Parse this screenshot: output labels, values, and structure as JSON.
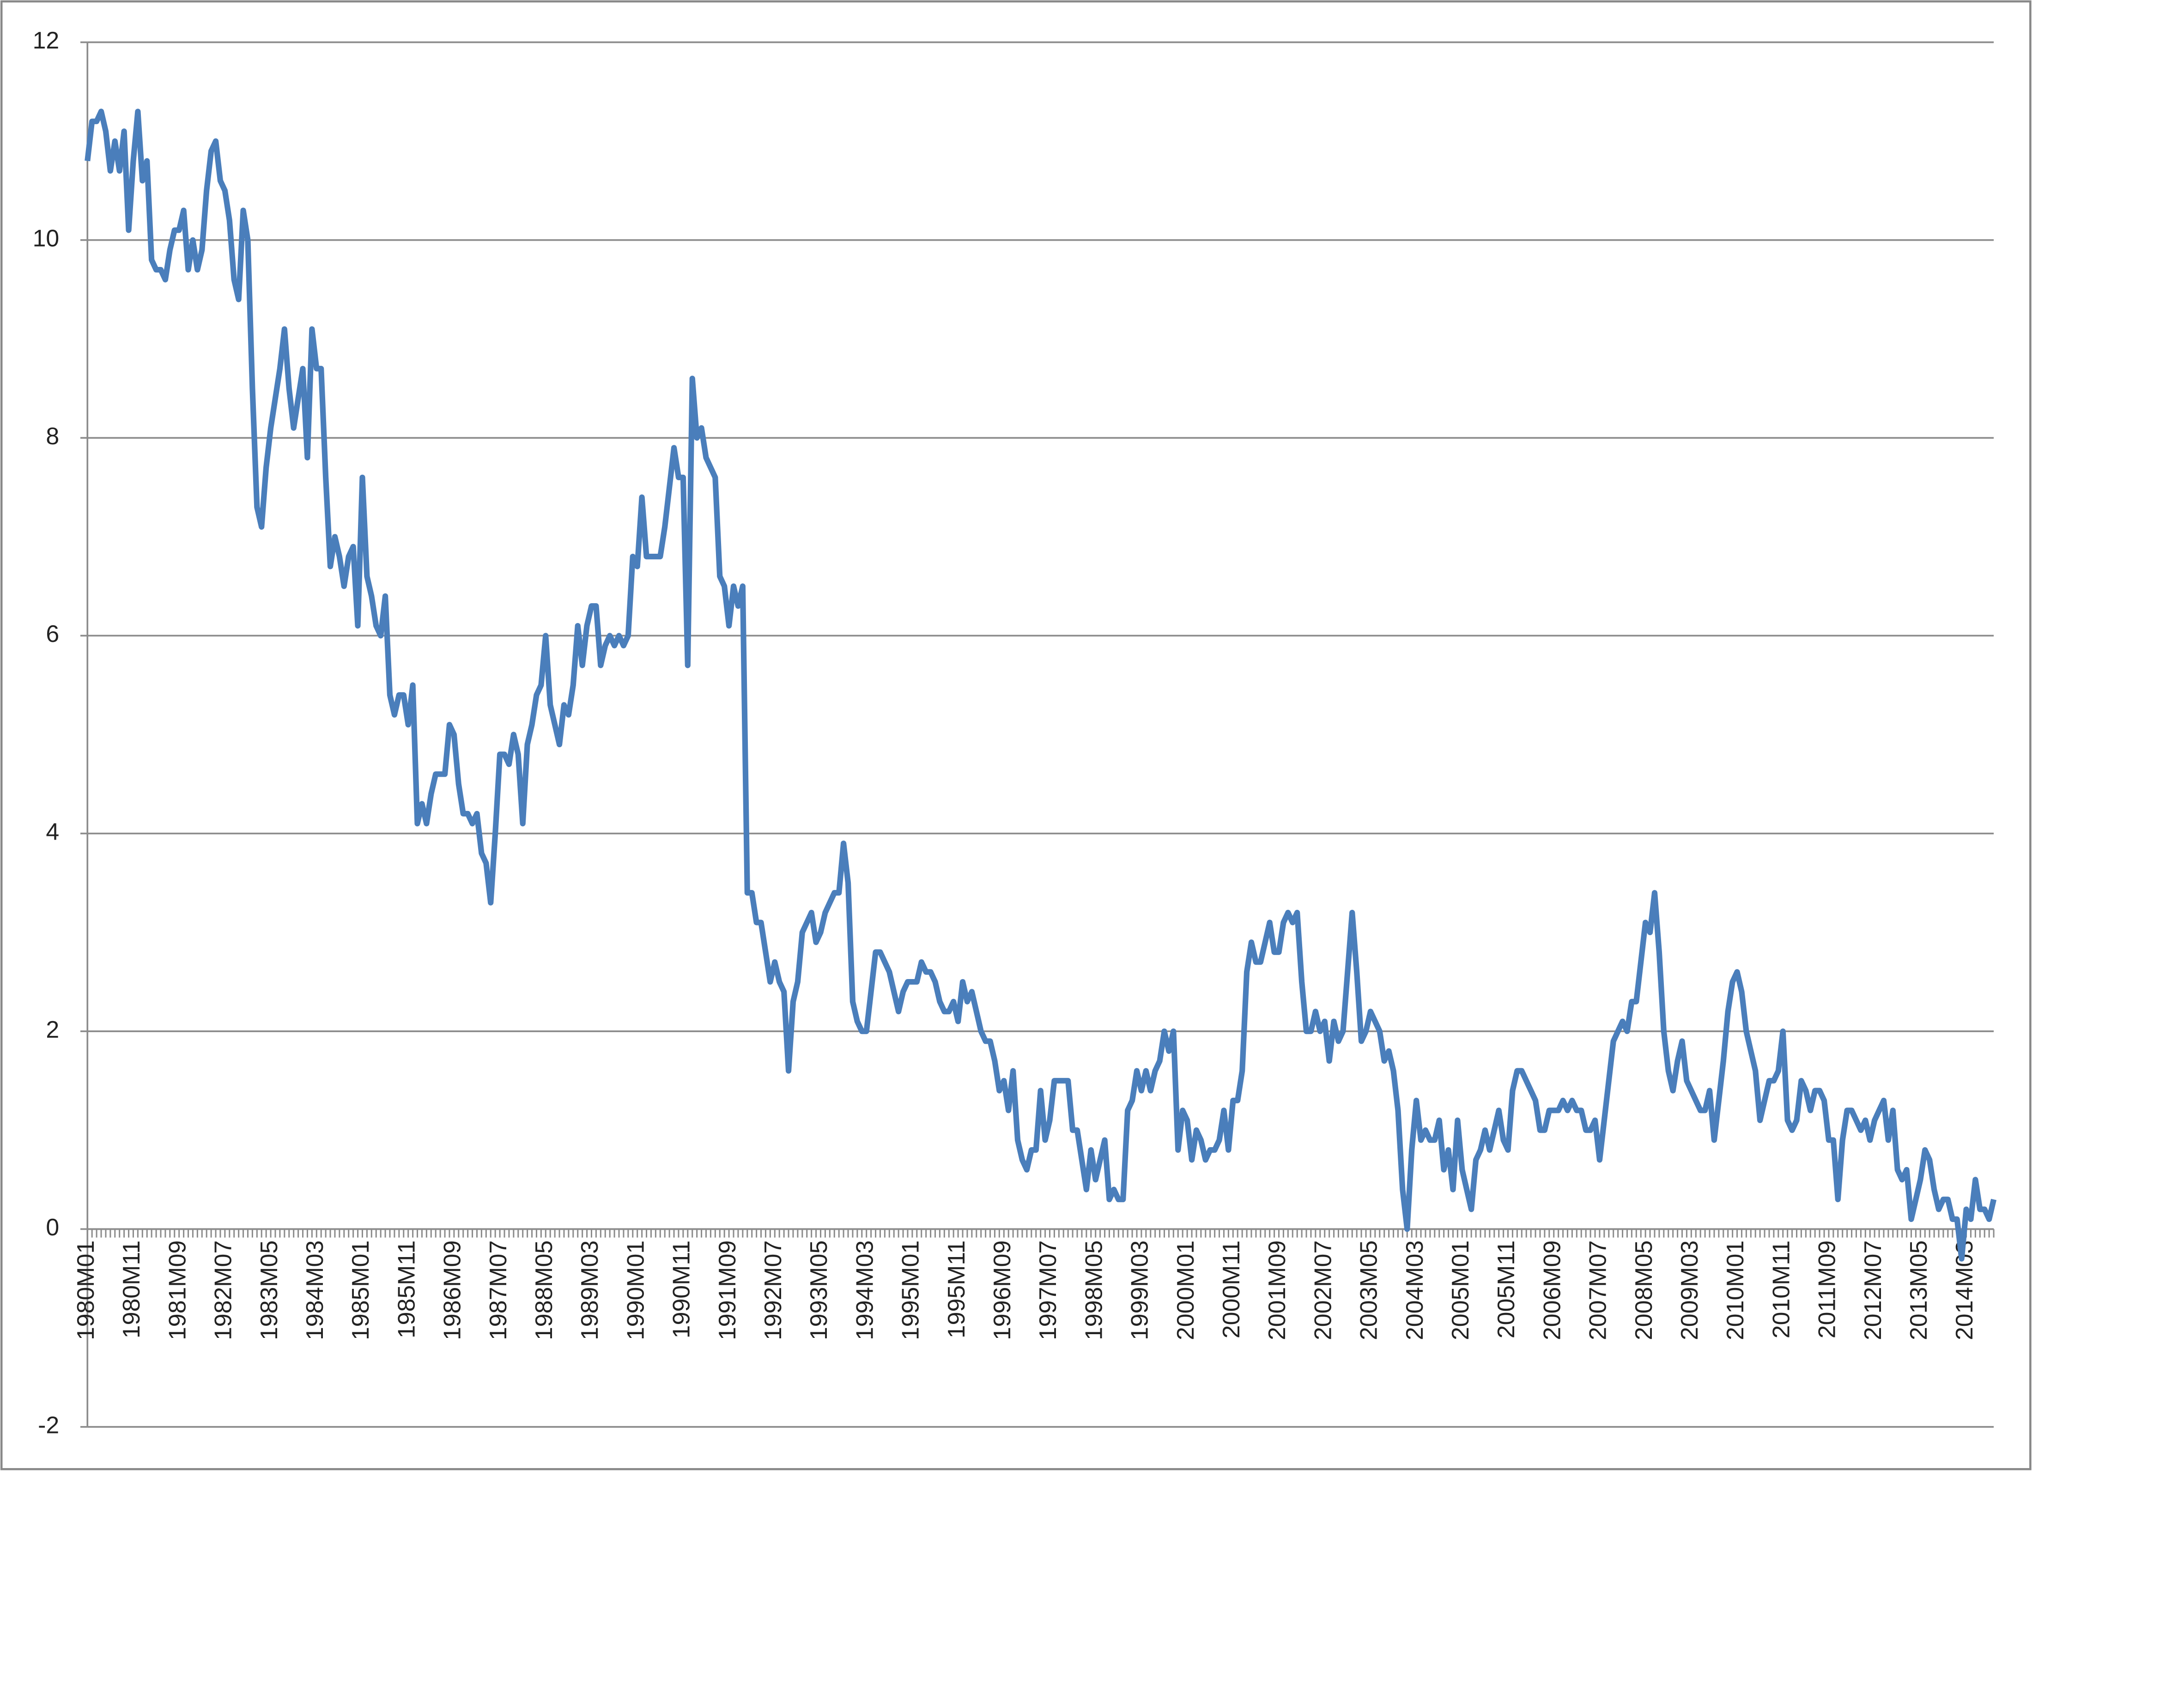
{
  "chart_data": {
    "type": "line",
    "categories": [
      "1980M01",
      null,
      null,
      null,
      null,
      null,
      null,
      null,
      null,
      null,
      "1980M11",
      null,
      null,
      null,
      null,
      null,
      null,
      null,
      null,
      null,
      "1981M09",
      null,
      null,
      null,
      null,
      null,
      null,
      null,
      null,
      null,
      "1982M07",
      null,
      null,
      null,
      null,
      null,
      null,
      null,
      null,
      null,
      "1983M05",
      null,
      null,
      null,
      null,
      null,
      null,
      null,
      null,
      null,
      "1984M03",
      null,
      null,
      null,
      null,
      null,
      null,
      null,
      null,
      null,
      "1985M01",
      null,
      null,
      null,
      null,
      null,
      null,
      null,
      null,
      null,
      "1985M11",
      null,
      null,
      null,
      null,
      null,
      null,
      null,
      null,
      null,
      "1986M09",
      null,
      null,
      null,
      null,
      null,
      null,
      null,
      null,
      null,
      "1987M07",
      null,
      null,
      null,
      null,
      null,
      null,
      null,
      null,
      null,
      "1988M05",
      null,
      null,
      null,
      null,
      null,
      null,
      null,
      null,
      null,
      "1989M03",
      null,
      null,
      null,
      null,
      null,
      null,
      null,
      null,
      null,
      "1990M01",
      null,
      null,
      null,
      null,
      null,
      null,
      null,
      null,
      null,
      "1990M11",
      null,
      null,
      null,
      null,
      null,
      null,
      null,
      null,
      null,
      "1991M09",
      null,
      null,
      null,
      null,
      null,
      null,
      null,
      null,
      null,
      "1992M07",
      null,
      null,
      null,
      null,
      null,
      null,
      null,
      null,
      null,
      "1993M05",
      null,
      null,
      null,
      null,
      null,
      null,
      null,
      null,
      null,
      "1994M03",
      null,
      null,
      null,
      null,
      null,
      null,
      null,
      null,
      null,
      "1995M01",
      null,
      null,
      null,
      null,
      null,
      null,
      null,
      null,
      null,
      "1995M11",
      null,
      null,
      null,
      null,
      null,
      null,
      null,
      null,
      null,
      "1996M09",
      null,
      null,
      null,
      null,
      null,
      null,
      null,
      null,
      null,
      "1997M07",
      null,
      null,
      null,
      null,
      null,
      null,
      null,
      null,
      null,
      "1998M05",
      null,
      null,
      null,
      null,
      null,
      null,
      null,
      null,
      null,
      "1999M03",
      null,
      null,
      null,
      null,
      null,
      null,
      null,
      null,
      null,
      "2000M01",
      null,
      null,
      null,
      null,
      null,
      null,
      null,
      null,
      null,
      "2000M11",
      null,
      null,
      null,
      null,
      null,
      null,
      null,
      null,
      null,
      "2001M09",
      null,
      null,
      null,
      null,
      null,
      null,
      null,
      null,
      null,
      "2002M07",
      null,
      null,
      null,
      null,
      null,
      null,
      null,
      null,
      null,
      "2003M05",
      null,
      null,
      null,
      null,
      null,
      null,
      null,
      null,
      null,
      "2004M03",
      null,
      null,
      null,
      null,
      null,
      null,
      null,
      null,
      null,
      "2005M01",
      null,
      null,
      null,
      null,
      null,
      null,
      null,
      null,
      null,
      "2005M11",
      null,
      null,
      null,
      null,
      null,
      null,
      null,
      null,
      null,
      "2006M09",
      null,
      null,
      null,
      null,
      null,
      null,
      null,
      null,
      null,
      "2007M07",
      null,
      null,
      null,
      null,
      null,
      null,
      null,
      null,
      null,
      "2008M05",
      null,
      null,
      null,
      null,
      null,
      null,
      null,
      null,
      null,
      "2009M03",
      null,
      null,
      null,
      null,
      null,
      null,
      null,
      null,
      null,
      "2010M01",
      null,
      null,
      null,
      null,
      null,
      null,
      null,
      null,
      null,
      "2010M11",
      null,
      null,
      null,
      null,
      null,
      null,
      null,
      null,
      null,
      "2011M09",
      null,
      null,
      null,
      null,
      null,
      null,
      null,
      null,
      null,
      "2012M07",
      null,
      null,
      null,
      null,
      null,
      null,
      null,
      null,
      null,
      "2013M05",
      null,
      null,
      null,
      null,
      null,
      null,
      null,
      null,
      null,
      "2014M03",
      null,
      null,
      null,
      null,
      null,
      null
    ],
    "series": [
      {
        "color": "#4a7ebb",
        "values": [
          10.8,
          11.2,
          11.2,
          11.3,
          11.1,
          10.7,
          11.0,
          10.7,
          11.1,
          10.1,
          10.8,
          11.3,
          10.6,
          10.8,
          9.8,
          9.7,
          9.7,
          9.6,
          9.9,
          10.1,
          10.1,
          10.3,
          9.7,
          10.0,
          9.7,
          9.9,
          10.5,
          10.9,
          11.0,
          10.6,
          10.5,
          10.2,
          9.6,
          9.4,
          10.3,
          10.0,
          8.5,
          7.3,
          7.1,
          7.7,
          8.1,
          8.4,
          8.7,
          9.1,
          8.5,
          8.1,
          8.4,
          8.7,
          7.8,
          9.1,
          8.7,
          8.7,
          7.6,
          6.7,
          7.0,
          6.8,
          6.5,
          6.8,
          6.9,
          6.1,
          7.6,
          6.6,
          6.4,
          6.1,
          6.0,
          6.4,
          5.4,
          5.2,
          5.4,
          5.4,
          5.1,
          5.5,
          4.1,
          4.3,
          4.1,
          4.4,
          4.6,
          4.6,
          4.6,
          5.1,
          5.0,
          4.5,
          4.2,
          4.2,
          4.1,
          4.2,
          3.8,
          3.7,
          3.3,
          4.0,
          4.8,
          4.8,
          4.7,
          5.0,
          4.8,
          4.1,
          4.9,
          5.1,
          5.4,
          5.5,
          6.0,
          5.3,
          5.1,
          4.9,
          5.3,
          5.2,
          5.5,
          6.1,
          5.7,
          6.1,
          6.3,
          6.3,
          5.7,
          5.9,
          6.0,
          5.9,
          6.0,
          5.9,
          6.0,
          6.8,
          6.7,
          7.4,
          6.8,
          6.8,
          6.8,
          6.8,
          7.1,
          7.5,
          7.9,
          7.6,
          7.6,
          5.7,
          8.6,
          8.0,
          8.1,
          7.8,
          7.7,
          7.6,
          6.6,
          6.5,
          6.1,
          6.5,
          6.3,
          6.5,
          3.4,
          3.4,
          3.1,
          3.1,
          2.8,
          2.5,
          2.7,
          2.5,
          2.4,
          1.6,
          2.3,
          2.5,
          3.0,
          3.1,
          3.2,
          2.9,
          3.0,
          3.2,
          3.3,
          3.4,
          3.4,
          3.9,
          3.5,
          2.3,
          2.1,
          2.0,
          2.0,
          2.4,
          2.8,
          2.8,
          2.7,
          2.6,
          2.4,
          2.2,
          2.4,
          2.5,
          2.5,
          2.5,
          2.7,
          2.6,
          2.6,
          2.5,
          2.3,
          2.2,
          2.2,
          2.3,
          2.1,
          2.5,
          2.3,
          2.4,
          2.2,
          2.0,
          1.9,
          1.9,
          1.7,
          1.4,
          1.5,
          1.2,
          1.6,
          0.9,
          0.7,
          0.6,
          0.8,
          0.8,
          1.4,
          0.9,
          1.1,
          1.5,
          1.5,
          1.5,
          1.5,
          1.0,
          1.0,
          0.7,
          0.4,
          0.8,
          0.5,
          0.7,
          0.9,
          0.3,
          0.4,
          0.3,
          0.3,
          1.2,
          1.3,
          1.6,
          1.4,
          1.6,
          1.4,
          1.6,
          1.7,
          2.0,
          1.8,
          2.0,
          0.8,
          1.2,
          1.1,
          0.7,
          1.0,
          0.9,
          0.7,
          0.8,
          0.8,
          0.9,
          1.2,
          0.8,
          1.3,
          1.3,
          1.6,
          2.6,
          2.9,
          2.7,
          2.7,
          2.9,
          3.1,
          2.8,
          2.8,
          3.1,
          3.2,
          3.1,
          3.2,
          2.5,
          2.0,
          2.0,
          2.2,
          2.0,
          2.1,
          1.7,
          2.1,
          1.9,
          2.0,
          2.6,
          3.2,
          2.6,
          1.9,
          2.0,
          2.2,
          2.1,
          2.0,
          1.7,
          1.8,
          1.6,
          1.2,
          0.4,
          0.0,
          0.8,
          1.3,
          0.9,
          1.0,
          0.9,
          0.9,
          1.1,
          0.6,
          0.8,
          0.4,
          1.1,
          0.6,
          0.4,
          0.2,
          0.7,
          0.8,
          1.0,
          0.8,
          1.0,
          1.2,
          0.9,
          0.8,
          1.4,
          1.6,
          1.6,
          1.5,
          1.4,
          1.3,
          1.0,
          1.0,
          1.2,
          1.2,
          1.2,
          1.3,
          1.2,
          1.3,
          1.2,
          1.2,
          1.0,
          1.0,
          1.1,
          0.7,
          1.1,
          1.5,
          1.9,
          2.0,
          2.1,
          2.0,
          2.3,
          2.3,
          2.7,
          3.1,
          3.0,
          3.4,
          2.8,
          2.0,
          1.6,
          1.4,
          1.7,
          1.9,
          1.5,
          1.4,
          1.3,
          1.2,
          1.2,
          1.4,
          0.9,
          1.3,
          1.7,
          2.2,
          2.5,
          2.6,
          2.4,
          2.0,
          1.8,
          1.6,
          1.1,
          1.3,
          1.5,
          1.5,
          1.6,
          2.0,
          1.1,
          1.0,
          1.1,
          1.5,
          1.4,
          1.2,
          1.4,
          1.4,
          1.3,
          0.9,
          0.9,
          0.3,
          0.9,
          1.2,
          1.2,
          1.1,
          1.0,
          1.1,
          0.9,
          1.1,
          1.2,
          1.3,
          0.9,
          1.2,
          0.6,
          0.5,
          0.6,
          0.1,
          0.3,
          0.5,
          0.8,
          0.7,
          0.4,
          0.2,
          0.3,
          0.3,
          0.1,
          0.1,
          -0.3,
          0.2,
          0.1,
          0.5,
          0.2,
          0.2,
          0.1,
          0.3
        ]
      }
    ],
    "ylim": [
      -2,
      12
    ],
    "yticks": [
      -2,
      0,
      2,
      4,
      6,
      8,
      10,
      12
    ],
    "grid": true
  }
}
